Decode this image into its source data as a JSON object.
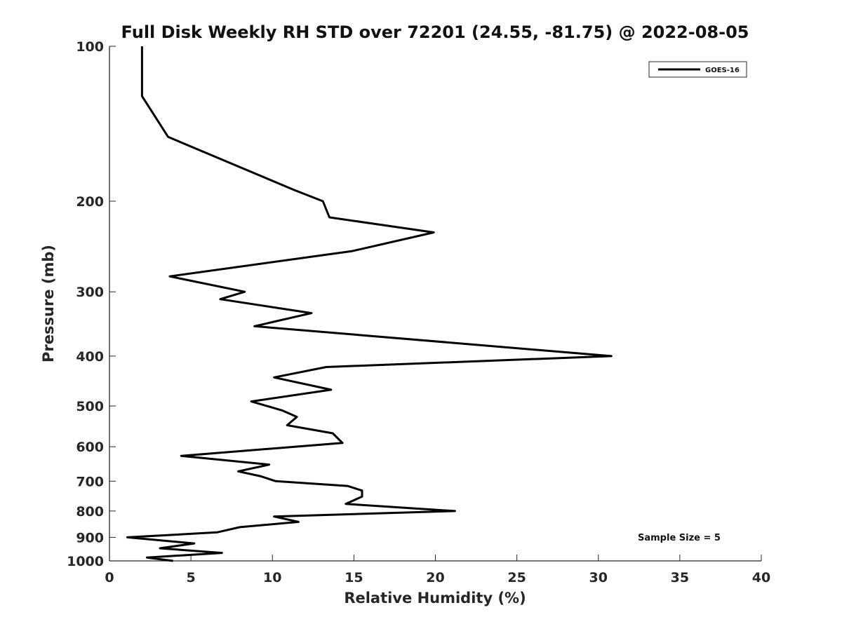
{
  "chart_data": {
    "type": "line",
    "title": "Full Disk Weekly RH STD over 72201 (24.55, -81.75) @ 2022-08-05",
    "xlabel": "Relative Humidity (%)",
    "ylabel": "Pressure (mb)",
    "xlim": [
      0,
      40
    ],
    "ylim": [
      100,
      1000
    ],
    "yscale": "log",
    "y_reversed": true,
    "x_ticks": [
      0,
      5,
      10,
      15,
      20,
      25,
      30,
      35,
      40
    ],
    "y_ticks": [
      100,
      200,
      300,
      400,
      500,
      600,
      700,
      800,
      900,
      1000
    ],
    "grid": false,
    "legend_position": "top-right",
    "annotation": "Sample Size = 5",
    "series": [
      {
        "name": "GOES-16",
        "color": "#000000",
        "points": [
          [
            2.0,
            100
          ],
          [
            2.0,
            125
          ],
          [
            3.6,
            150
          ],
          [
            11.3,
            190
          ],
          [
            13.1,
            200
          ],
          [
            13.5,
            215
          ],
          [
            19.9,
            230
          ],
          [
            14.9,
            250
          ],
          [
            3.7,
            280
          ],
          [
            8.3,
            300
          ],
          [
            6.8,
            310
          ],
          [
            12.4,
            330
          ],
          [
            8.9,
            350
          ],
          [
            30.8,
            400
          ],
          [
            13.3,
            420
          ],
          [
            10.1,
            440
          ],
          [
            13.6,
            465
          ],
          [
            8.7,
            490
          ],
          [
            10.6,
            510
          ],
          [
            11.5,
            525
          ],
          [
            10.9,
            545
          ],
          [
            13.7,
            565
          ],
          [
            14.3,
            590
          ],
          [
            4.4,
            625
          ],
          [
            9.8,
            650
          ],
          [
            7.9,
            670
          ],
          [
            9.3,
            685
          ],
          [
            10.2,
            700
          ],
          [
            14.6,
            715
          ],
          [
            15.5,
            730
          ],
          [
            15.5,
            750
          ],
          [
            14.5,
            775
          ],
          [
            21.2,
            800
          ],
          [
            10.1,
            820
          ],
          [
            11.6,
            840
          ],
          [
            8.0,
            860
          ],
          [
            6.6,
            880
          ],
          [
            1.1,
            900
          ],
          [
            5.2,
            925
          ],
          [
            3.1,
            945
          ],
          [
            6.9,
            965
          ],
          [
            2.3,
            985
          ],
          [
            3.9,
            1000
          ]
        ]
      }
    ]
  }
}
